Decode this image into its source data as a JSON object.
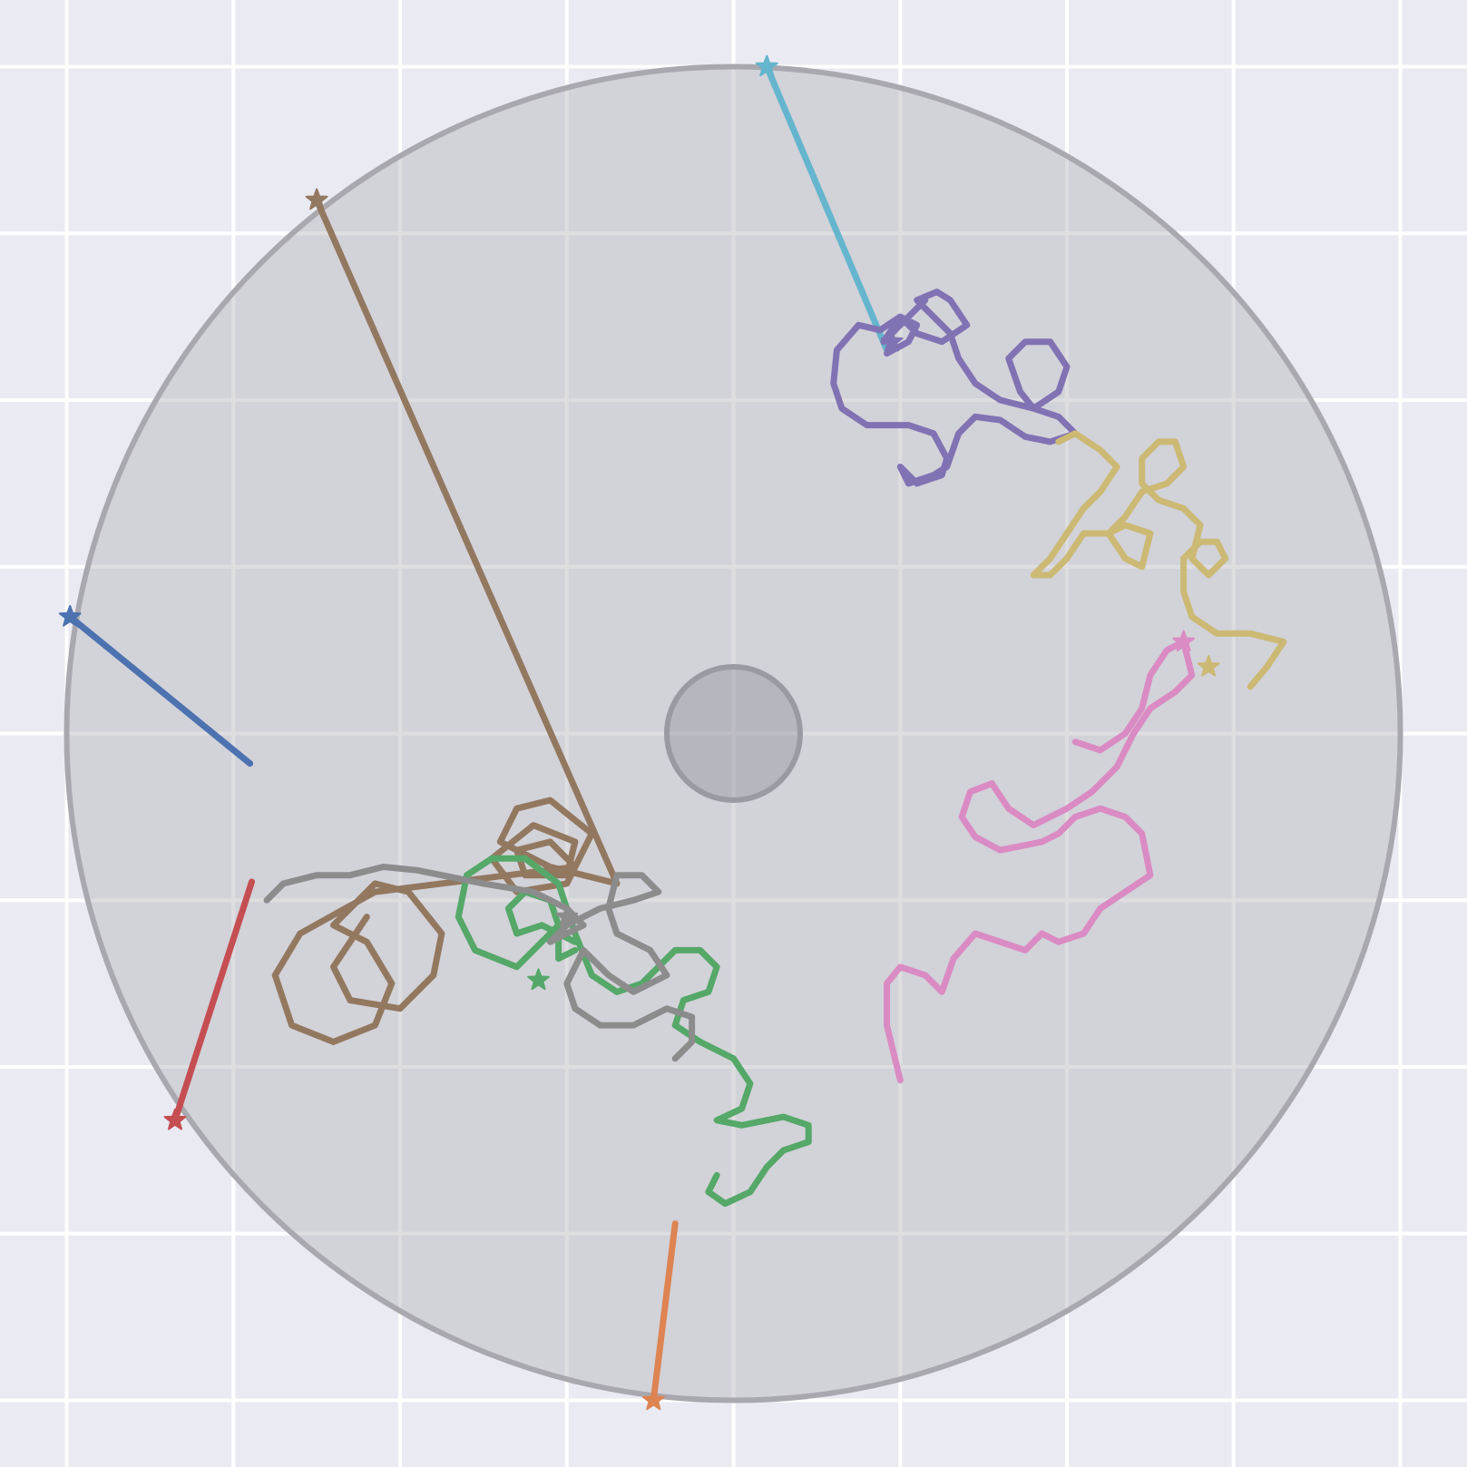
{
  "chart_data": {
    "type": "line",
    "title": "",
    "xlabel": "",
    "ylabel": "",
    "xlim": [
      -4.4,
      4.4
    ],
    "ylim": [
      -4.4,
      4.4
    ],
    "grid": true,
    "grid_step": 1,
    "legend": "none",
    "background": "#eaeaf2",
    "arena": {
      "center": [
        0,
        0
      ],
      "radius": 4.0,
      "color": "#b0b0b8"
    },
    "obstacle": {
      "center": [
        0,
        0
      ],
      "radius": 0.4,
      "color": "#8c8c96"
    },
    "series": [
      {
        "color": "#4c72b0",
        "start": [
          -3.98,
          0.7
        ],
        "points": [
          [
            -3.98,
            0.7
          ],
          [
            -2.9,
            -0.18
          ]
        ]
      },
      {
        "color": "#dd8452",
        "start": [
          -0.48,
          -4.0
        ],
        "points": [
          [
            -0.48,
            -4.0
          ],
          [
            -0.35,
            -2.94
          ]
        ]
      },
      {
        "color": "#c44e52",
        "start": [
          -3.35,
          -2.32
        ],
        "points": [
          [
            -3.35,
            -2.32
          ],
          [
            -2.89,
            -0.89
          ]
        ]
      },
      {
        "color": "#64b5cd",
        "start": [
          0.2,
          4.0
        ],
        "points": [
          [
            0.2,
            4.0
          ],
          [
            0.92,
            2.3
          ]
        ]
      },
      {
        "color": "#937860",
        "start": [
          -2.5,
          3.2
        ],
        "points": [
          [
            -2.5,
            3.2
          ],
          [
            -0.7,
            -0.9
          ],
          [
            -1.1,
            -0.8
          ],
          [
            -1.4,
            -0.65
          ],
          [
            -1.3,
            -0.45
          ],
          [
            -1.1,
            -0.4
          ],
          [
            -0.85,
            -0.6
          ],
          [
            -1.0,
            -0.9
          ],
          [
            -1.3,
            -0.95
          ],
          [
            -1.45,
            -0.75
          ],
          [
            -1.2,
            -0.55
          ],
          [
            -0.95,
            -0.65
          ],
          [
            -1.0,
            -0.85
          ],
          [
            -1.25,
            -0.85
          ],
          [
            -1.3,
            -0.7
          ],
          [
            -1.1,
            -0.65
          ],
          [
            -0.95,
            -0.8
          ],
          [
            -2.15,
            -0.95
          ],
          [
            -2.6,
            -1.2
          ],
          [
            -2.75,
            -1.45
          ],
          [
            -2.65,
            -1.75
          ],
          [
            -2.4,
            -1.85
          ],
          [
            -2.15,
            -1.75
          ],
          [
            -2.05,
            -1.5
          ],
          [
            -2.2,
            -1.25
          ],
          [
            -2.4,
            -1.15
          ],
          [
            -2.15,
            -0.9
          ],
          [
            -1.95,
            -0.95
          ],
          [
            -1.75,
            -1.2
          ],
          [
            -1.8,
            -1.45
          ],
          [
            -2.0,
            -1.65
          ],
          [
            -2.3,
            -1.6
          ],
          [
            -2.4,
            -1.4
          ],
          [
            -2.2,
            -1.1
          ]
        ]
      },
      {
        "color": "#55a868",
        "start": [
          -1.17,
          -1.48
        ],
        "points": [
          [
            -0.95,
            -1.3
          ],
          [
            -1.05,
            -1.35
          ],
          [
            -1.05,
            -1.2
          ],
          [
            -0.95,
            -1.25
          ],
          [
            -1.15,
            -1.15
          ],
          [
            -1.3,
            -1.2
          ],
          [
            -1.35,
            -1.05
          ],
          [
            -1.25,
            -0.95
          ],
          [
            -1.1,
            -1.0
          ],
          [
            -1.05,
            -1.15
          ],
          [
            -1.3,
            -1.4
          ],
          [
            -1.55,
            -1.3
          ],
          [
            -1.65,
            -1.1
          ],
          [
            -1.6,
            -0.85
          ],
          [
            -1.45,
            -0.75
          ],
          [
            -1.25,
            -0.75
          ],
          [
            -1.05,
            -0.9
          ],
          [
            -0.95,
            -1.2
          ],
          [
            -0.85,
            -1.45
          ],
          [
            -0.7,
            -1.55
          ],
          [
            -0.55,
            -1.5
          ],
          [
            -0.35,
            -1.3
          ],
          [
            -0.2,
            -1.3
          ],
          [
            -0.1,
            -1.4
          ],
          [
            -0.15,
            -1.55
          ],
          [
            -0.3,
            -1.6
          ],
          [
            -0.35,
            -1.75
          ],
          [
            -0.2,
            -1.85
          ],
          [
            0.0,
            -1.95
          ],
          [
            0.1,
            -2.1
          ],
          [
            0.05,
            -2.25
          ],
          [
            -0.1,
            -2.32
          ],
          [
            0.05,
            -2.35
          ],
          [
            0.3,
            -2.3
          ],
          [
            0.45,
            -2.35
          ],
          [
            0.45,
            -2.45
          ],
          [
            0.3,
            -2.5
          ],
          [
            0.2,
            -2.6
          ],
          [
            0.1,
            -2.75
          ],
          [
            -0.05,
            -2.82
          ],
          [
            -0.15,
            -2.75
          ],
          [
            -0.1,
            -2.65
          ]
        ]
      },
      {
        "color": "#8c8c8c",
        "start": [
          -1.0,
          -1.1
        ],
        "points": [
          [
            -2.8,
            -1.0
          ],
          [
            -2.7,
            -0.9
          ],
          [
            -2.5,
            -0.85
          ],
          [
            -2.3,
            -0.85
          ],
          [
            -2.1,
            -0.8
          ],
          [
            -1.9,
            -0.82
          ],
          [
            -1.5,
            -0.9
          ],
          [
            -1.2,
            -0.95
          ],
          [
            -1.0,
            -1.05
          ],
          [
            -0.9,
            -1.15
          ],
          [
            -1.1,
            -1.25
          ],
          [
            -1.0,
            -1.15
          ],
          [
            -0.8,
            -1.05
          ],
          [
            -0.6,
            -1.0
          ],
          [
            -0.45,
            -0.95
          ],
          [
            -0.55,
            -0.85
          ],
          [
            -0.7,
            -0.85
          ],
          [
            -0.75,
            -1.05
          ],
          [
            -0.7,
            -1.2
          ],
          [
            -0.5,
            -1.3
          ],
          [
            -0.4,
            -1.45
          ],
          [
            -0.6,
            -1.55
          ],
          [
            -0.75,
            -1.45
          ],
          [
            -0.9,
            -1.3
          ],
          [
            -1.0,
            -1.5
          ],
          [
            -0.95,
            -1.65
          ],
          [
            -0.8,
            -1.75
          ],
          [
            -0.6,
            -1.75
          ],
          [
            -0.4,
            -1.65
          ],
          [
            -0.25,
            -1.7
          ],
          [
            -0.25,
            -1.85
          ],
          [
            -0.35,
            -1.95
          ]
        ]
      },
      {
        "color": "#8172b3",
        "start": [
          0.95,
          2.35
        ],
        "points": [
          [
            0.92,
            2.28
          ],
          [
            1.05,
            2.35
          ],
          [
            1.1,
            2.45
          ],
          [
            1.0,
            2.5
          ],
          [
            0.88,
            2.42
          ],
          [
            0.75,
            2.45
          ],
          [
            0.62,
            2.3
          ],
          [
            0.6,
            2.1
          ],
          [
            0.65,
            1.95
          ],
          [
            0.8,
            1.85
          ],
          [
            1.05,
            1.85
          ],
          [
            1.2,
            1.8
          ],
          [
            1.28,
            1.65
          ],
          [
            1.25,
            1.55
          ],
          [
            1.1,
            1.5
          ],
          [
            1.0,
            1.6
          ],
          [
            1.05,
            1.5
          ],
          [
            1.2,
            1.55
          ],
          [
            1.28,
            1.6
          ],
          [
            1.35,
            1.8
          ],
          [
            1.45,
            1.9
          ],
          [
            1.6,
            1.88
          ],
          [
            1.75,
            1.78
          ],
          [
            1.9,
            1.75
          ],
          [
            2.05,
            1.8
          ],
          [
            1.95,
            1.9
          ],
          [
            1.8,
            1.95
          ],
          [
            1.72,
            2.05
          ],
          [
            1.65,
            2.25
          ],
          [
            1.75,
            2.35
          ],
          [
            1.9,
            2.35
          ],
          [
            2.0,
            2.2
          ],
          [
            1.95,
            2.05
          ],
          [
            1.8,
            1.95
          ],
          [
            1.6,
            2.0
          ],
          [
            1.45,
            2.1
          ],
          [
            1.35,
            2.25
          ],
          [
            1.3,
            2.4
          ],
          [
            1.2,
            2.5
          ],
          [
            1.1,
            2.6
          ],
          [
            1.22,
            2.65
          ],
          [
            1.3,
            2.6
          ],
          [
            1.4,
            2.45
          ],
          [
            1.25,
            2.35
          ],
          [
            1.1,
            2.4
          ],
          [
            1.0,
            2.5
          ],
          [
            0.9,
            2.35
          ],
          [
            1.15,
            2.6
          ]
        ]
      },
      {
        "color": "#da8bc3",
        "start": [
          2.7,
          0.55
        ],
        "points": [
          [
            1.0,
            -2.08
          ],
          [
            0.92,
            -1.75
          ],
          [
            0.92,
            -1.5
          ],
          [
            1.0,
            -1.4
          ],
          [
            1.15,
            -1.45
          ],
          [
            1.25,
            -1.55
          ],
          [
            1.32,
            -1.35
          ],
          [
            1.45,
            -1.2
          ],
          [
            1.6,
            -1.25
          ],
          [
            1.75,
            -1.3
          ],
          [
            1.85,
            -1.2
          ],
          [
            1.95,
            -1.25
          ],
          [
            2.1,
            -1.2
          ],
          [
            2.2,
            -1.05
          ],
          [
            2.35,
            -0.95
          ],
          [
            2.5,
            -0.85
          ],
          [
            2.45,
            -0.6
          ],
          [
            2.35,
            -0.5
          ],
          [
            2.2,
            -0.45
          ],
          [
            2.05,
            -0.5
          ],
          [
            1.95,
            -0.6
          ],
          [
            1.85,
            -0.65
          ],
          [
            1.6,
            -0.7
          ],
          [
            1.45,
            -0.62
          ],
          [
            1.37,
            -0.5
          ],
          [
            1.42,
            -0.35
          ],
          [
            1.55,
            -0.3
          ],
          [
            1.65,
            -0.45
          ],
          [
            1.8,
            -0.55
          ],
          [
            2.0,
            -0.45
          ],
          [
            2.15,
            -0.35
          ],
          [
            2.3,
            -0.2
          ],
          [
            2.4,
            0.0
          ],
          [
            2.5,
            0.15
          ],
          [
            2.65,
            0.25
          ],
          [
            2.75,
            0.35
          ],
          [
            2.7,
            0.55
          ],
          [
            2.6,
            0.5
          ],
          [
            2.5,
            0.35
          ],
          [
            2.45,
            0.15
          ],
          [
            2.35,
            0.0
          ],
          [
            2.2,
            -0.1
          ],
          [
            2.05,
            -0.05
          ]
        ]
      },
      {
        "color": "#ccb974",
        "start": [
          2.85,
          0.4
        ],
        "points": [
          [
            3.1,
            0.28
          ],
          [
            3.2,
            0.4
          ],
          [
            3.3,
            0.55
          ],
          [
            3.1,
            0.6
          ],
          [
            2.9,
            0.6
          ],
          [
            2.75,
            0.7
          ],
          [
            2.7,
            0.85
          ],
          [
            2.7,
            1.05
          ],
          [
            2.8,
            1.15
          ],
          [
            2.9,
            1.15
          ],
          [
            2.95,
            1.05
          ],
          [
            2.85,
            0.95
          ],
          [
            2.75,
            1.05
          ],
          [
            2.8,
            1.25
          ],
          [
            2.7,
            1.35
          ],
          [
            2.55,
            1.4
          ],
          [
            2.45,
            1.5
          ],
          [
            2.45,
            1.65
          ],
          [
            2.55,
            1.75
          ],
          [
            2.65,
            1.75
          ],
          [
            2.7,
            1.6
          ],
          [
            2.6,
            1.5
          ],
          [
            2.45,
            1.45
          ],
          [
            2.35,
            1.3
          ],
          [
            2.25,
            1.2
          ],
          [
            2.35,
            1.05
          ],
          [
            2.45,
            1.0
          ],
          [
            2.5,
            1.2
          ],
          [
            2.35,
            1.25
          ],
          [
            2.25,
            1.2
          ],
          [
            2.1,
            1.2
          ],
          [
            2.0,
            1.05
          ],
          [
            1.9,
            0.95
          ],
          [
            1.8,
            0.95
          ],
          [
            1.9,
            1.05
          ],
          [
            2.0,
            1.2
          ],
          [
            2.1,
            1.35
          ],
          [
            2.2,
            1.45
          ],
          [
            2.3,
            1.6
          ],
          [
            2.2,
            1.7
          ],
          [
            2.05,
            1.8
          ],
          [
            1.95,
            1.75
          ]
        ]
      }
    ]
  }
}
